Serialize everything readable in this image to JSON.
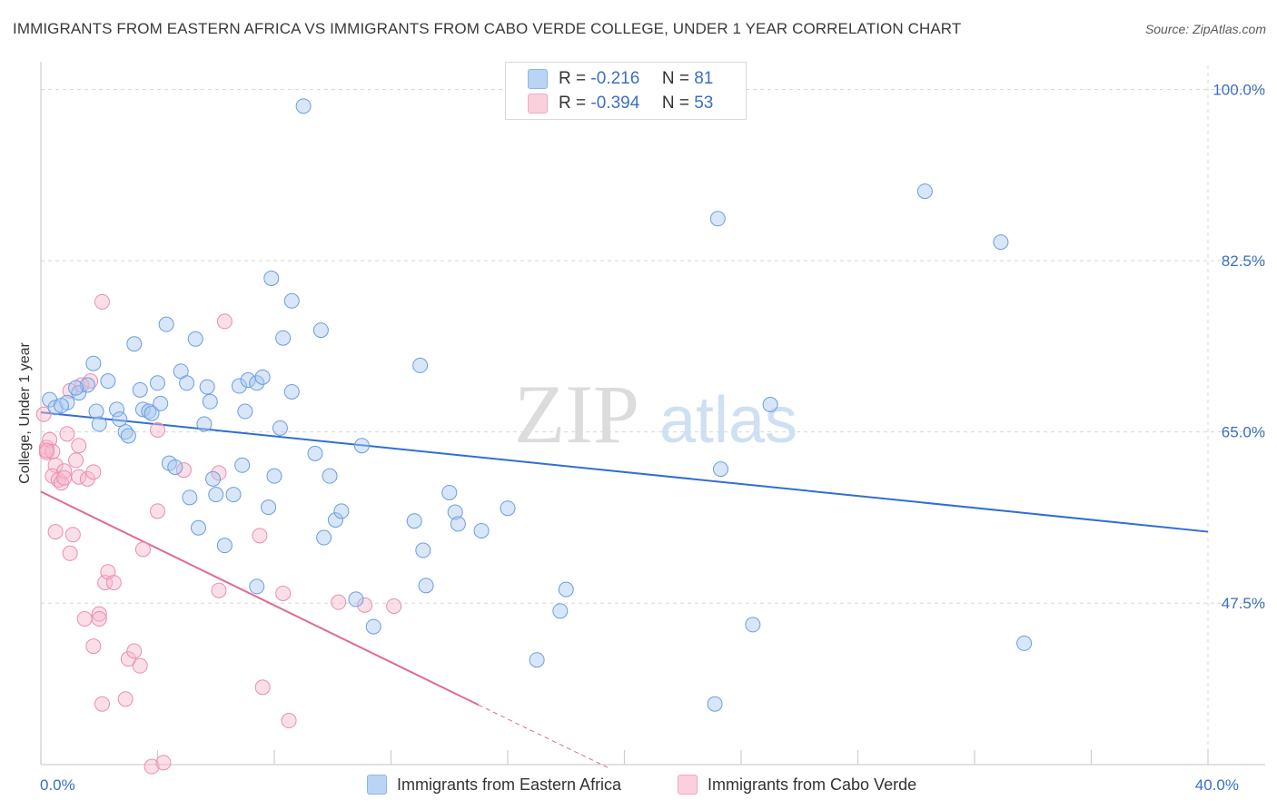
{
  "title": "IMMIGRANTS FROM EASTERN AFRICA VS IMMIGRANTS FROM CABO VERDE COLLEGE, UNDER 1 YEAR CORRELATION CHART",
  "source": "Source: ZipAtlas.com",
  "watermark": {
    "zip": "ZIP",
    "atlas": "atlas"
  },
  "legend": {
    "r_label": "R =",
    "n_label": "N =",
    "blue": {
      "r": "-0.216",
      "n": "81"
    },
    "pink": {
      "r": "-0.394",
      "n": "53"
    }
  },
  "colors": {
    "blue_fill": "#a9c8f0",
    "blue_stroke": "#6b9ee0",
    "blue_line": "#2f6fd1",
    "pink_fill": "#f7b8cb",
    "pink_stroke": "#ea8eab",
    "pink_line": "#e06a96",
    "tick_text": "#3a6fc4",
    "grid": "#d8d8d8"
  },
  "chart_data": {
    "type": "scatter",
    "title": "IMMIGRANTS FROM EASTERN AFRICA VS IMMIGRANTS FROM CABO VERDE COLLEGE, UNDER 1 YEAR CORRELATION CHART",
    "xlabel": "",
    "ylabel": "College, Under 1 year",
    "xlim": [
      0,
      40
    ],
    "ylim": [
      31,
      102
    ],
    "x_tick_labels": [
      {
        "value": 0,
        "label": "0.0%"
      },
      {
        "value": 40,
        "label": "40.0%"
      }
    ],
    "x_minor_ticks": [
      0,
      4,
      8,
      12,
      16,
      20,
      24,
      28,
      32,
      36,
      40
    ],
    "y_ticks": [
      {
        "value": 100,
        "label": "100.0%"
      },
      {
        "value": 82.5,
        "label": "82.5%"
      },
      {
        "value": 65,
        "label": "65.0%"
      },
      {
        "value": 47.5,
        "label": "47.5%"
      }
    ],
    "series": [
      {
        "name": "Immigrants from Eastern Africa",
        "color": "#6b9ee0",
        "r": -0.216,
        "n": 81,
        "trend": {
          "x0": 0,
          "y0": 67.0,
          "x1": 40,
          "y1": 54.8
        },
        "points": [
          [
            0.3,
            68.3
          ],
          [
            0.5,
            67.5
          ],
          [
            0.9,
            68.0
          ],
          [
            1.3,
            69.0
          ],
          [
            1.6,
            69.8
          ],
          [
            1.8,
            72.0
          ],
          [
            2.3,
            70.2
          ],
          [
            1.9,
            67.1
          ],
          [
            2.0,
            65.8
          ],
          [
            2.6,
            67.3
          ],
          [
            2.9,
            65.0
          ],
          [
            3.0,
            64.6
          ],
          [
            3.2,
            74.0
          ],
          [
            3.4,
            69.3
          ],
          [
            3.5,
            67.3
          ],
          [
            3.7,
            67.1
          ],
          [
            3.8,
            66.9
          ],
          [
            4.0,
            70.0
          ],
          [
            4.1,
            67.9
          ],
          [
            4.3,
            76.0
          ],
          [
            4.4,
            61.8
          ],
          [
            4.6,
            61.4
          ],
          [
            4.8,
            71.2
          ],
          [
            5.0,
            70.0
          ],
          [
            5.1,
            58.3
          ],
          [
            5.3,
            74.5
          ],
          [
            5.4,
            55.2
          ],
          [
            5.6,
            65.8
          ],
          [
            5.7,
            69.6
          ],
          [
            5.9,
            60.2
          ],
          [
            6.0,
            58.6
          ],
          [
            6.3,
            53.4
          ],
          [
            6.6,
            58.6
          ],
          [
            6.8,
            69.7
          ],
          [
            7.0,
            67.1
          ],
          [
            7.1,
            70.3
          ],
          [
            7.4,
            70.0
          ],
          [
            7.6,
            70.6
          ],
          [
            7.4,
            49.2
          ],
          [
            7.8,
            57.3
          ],
          [
            7.9,
            80.7
          ],
          [
            8.0,
            60.5
          ],
          [
            8.2,
            65.4
          ],
          [
            8.3,
            74.6
          ],
          [
            8.6,
            69.1
          ],
          [
            8.6,
            78.4
          ],
          [
            9.0,
            98.3
          ],
          [
            9.4,
            62.8
          ],
          [
            9.6,
            75.4
          ],
          [
            9.9,
            60.5
          ],
          [
            10.1,
            56.0
          ],
          [
            10.3,
            56.9
          ],
          [
            10.8,
            47.9
          ],
          [
            11.0,
            63.6
          ],
          [
            11.4,
            45.1
          ],
          [
            12.8,
            55.9
          ],
          [
            13.0,
            71.8
          ],
          [
            13.1,
            52.9
          ],
          [
            13.2,
            49.3
          ],
          [
            14.0,
            58.8
          ],
          [
            14.2,
            56.8
          ],
          [
            14.3,
            55.6
          ],
          [
            15.1,
            54.9
          ],
          [
            16.0,
            57.2
          ],
          [
            17.0,
            41.7
          ],
          [
            17.8,
            46.7
          ],
          [
            18.0,
            48.9
          ],
          [
            23.1,
            37.2
          ],
          [
            23.2,
            86.8
          ],
          [
            23.3,
            61.2
          ],
          [
            24.4,
            45.3
          ],
          [
            25.0,
            67.8
          ],
          [
            30.3,
            89.6
          ],
          [
            32.9,
            84.4
          ],
          [
            33.7,
            43.4
          ],
          [
            0.7,
            67.7
          ],
          [
            1.2,
            69.5
          ],
          [
            2.7,
            66.3
          ],
          [
            5.8,
            68.1
          ],
          [
            6.9,
            61.6
          ],
          [
            9.7,
            54.2
          ]
        ]
      },
      {
        "name": "Immigrants from Cabo Verde",
        "color": "#ea8eab",
        "r": -0.394,
        "n": 53,
        "trend": {
          "x0": 0,
          "y0": 58.9,
          "x1": 15.0,
          "y1": 37.1
        },
        "trend_extension": {
          "x0": 15.0,
          "y0": 37.1,
          "x1": 19.5,
          "y1": 30.6
        },
        "points": [
          [
            0.1,
            66.8
          ],
          [
            0.2,
            63.4
          ],
          [
            0.2,
            62.9
          ],
          [
            0.3,
            64.2
          ],
          [
            0.4,
            63.0
          ],
          [
            0.5,
            61.6
          ],
          [
            0.4,
            60.5
          ],
          [
            0.5,
            54.8
          ],
          [
            0.6,
            60.1
          ],
          [
            0.7,
            59.8
          ],
          [
            0.8,
            61.0
          ],
          [
            0.8,
            60.3
          ],
          [
            0.9,
            64.8
          ],
          [
            1.0,
            69.2
          ],
          [
            1.0,
            52.6
          ],
          [
            1.1,
            54.5
          ],
          [
            1.2,
            62.1
          ],
          [
            1.3,
            60.4
          ],
          [
            1.3,
            63.6
          ],
          [
            1.4,
            69.8
          ],
          [
            1.5,
            45.9
          ],
          [
            1.6,
            60.2
          ],
          [
            1.7,
            70.2
          ],
          [
            1.8,
            60.9
          ],
          [
            1.8,
            43.1
          ],
          [
            2.0,
            46.4
          ],
          [
            2.0,
            45.9
          ],
          [
            2.1,
            78.3
          ],
          [
            2.1,
            37.2
          ],
          [
            2.2,
            49.6
          ],
          [
            2.3,
            50.7
          ],
          [
            2.5,
            49.6
          ],
          [
            2.9,
            37.7
          ],
          [
            3.0,
            41.8
          ],
          [
            3.2,
            42.6
          ],
          [
            3.4,
            41.1
          ],
          [
            3.5,
            53.0
          ],
          [
            3.8,
            30.8
          ],
          [
            4.0,
            65.2
          ],
          [
            4.0,
            56.9
          ],
          [
            4.2,
            31.2
          ],
          [
            4.9,
            61.1
          ],
          [
            6.1,
            60.8
          ],
          [
            6.1,
            48.8
          ],
          [
            6.3,
            76.3
          ],
          [
            7.5,
            54.4
          ],
          [
            7.6,
            38.9
          ],
          [
            8.3,
            48.5
          ],
          [
            8.5,
            35.5
          ],
          [
            10.2,
            47.6
          ],
          [
            11.1,
            47.3
          ],
          [
            12.1,
            47.2
          ],
          [
            0.2,
            63.1
          ]
        ]
      }
    ]
  },
  "bottom_legend": {
    "blue_label": "Immigrants from Eastern Africa",
    "pink_label": "Immigrants from Cabo Verde"
  }
}
